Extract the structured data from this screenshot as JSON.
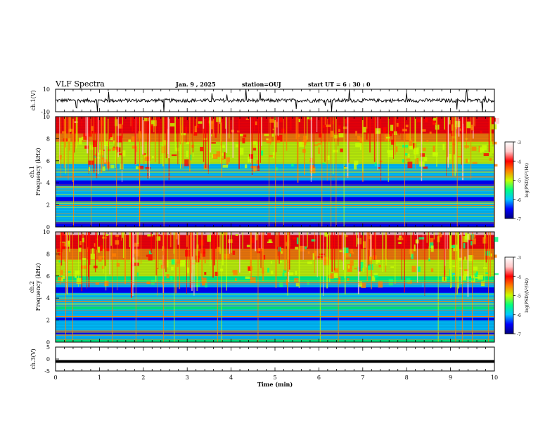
{
  "header": {
    "title": "VLF Spectra",
    "date": "Jan. 9 , 2025",
    "station": "station=OUJ",
    "start": "start UT =  6 : 30 : 0"
  },
  "chart_data": [
    {
      "type": "line",
      "panel": "ch1-waveform",
      "ylabel": "ch.1(V)",
      "ylim": [
        -10,
        10
      ],
      "yticks": [
        "10",
        "-10"
      ],
      "baseline": 0
    },
    {
      "type": "heatmap",
      "panel": "ch1-spectrogram",
      "ylabel_line1": "ch.1",
      "ylabel_line2": "Frequency (kHz)",
      "ylim": [
        0,
        10
      ],
      "yticks": [
        "0",
        "2",
        "4",
        "6",
        "8",
        "10"
      ],
      "colorbar": {
        "label": "log(PSD)(V²/Hz)",
        "range": [
          -7,
          -3
        ],
        "ticks": [
          "-3",
          "-4",
          "-5",
          "-6",
          "-7"
        ],
        "colors": [
          "#000080",
          "#0000ff",
          "#00c8ff",
          "#00ff80",
          "#c8ff00",
          "#ff8000",
          "#ff0000",
          "#ffc8c8",
          "#ffffff"
        ]
      }
    },
    {
      "type": "heatmap",
      "panel": "ch2-spectrogram",
      "ylabel_line1": "ch.2",
      "ylabel_line2": "Frequency (kHz)",
      "ylim": [
        0,
        10
      ],
      "yticks": [
        "0",
        "2",
        "4",
        "6",
        "8",
        "10"
      ],
      "colorbar": {
        "label": "log(PSD)(V²/Hz)",
        "range": [
          -7,
          -3
        ],
        "ticks": [
          "-3",
          "-4",
          "-5",
          "-6",
          "-7"
        ],
        "colors": [
          "#000080",
          "#0000ff",
          "#00c8ff",
          "#00ff80",
          "#c8ff00",
          "#ff8000",
          "#ff0000",
          "#ffc8c8",
          "#ffffff"
        ]
      }
    },
    {
      "type": "line",
      "panel": "ch3-waveform",
      "ylabel": "ch.3(V)",
      "ylim": [
        -5,
        5
      ],
      "yticks": [
        "5",
        "0",
        "-5"
      ],
      "baseline": -1,
      "xlabel": "Time (min)",
      "xlim": [
        0,
        10
      ],
      "xticks": [
        "0",
        "1",
        "2",
        "3",
        "4",
        "5",
        "6",
        "7",
        "8",
        "9",
        "10"
      ]
    }
  ]
}
